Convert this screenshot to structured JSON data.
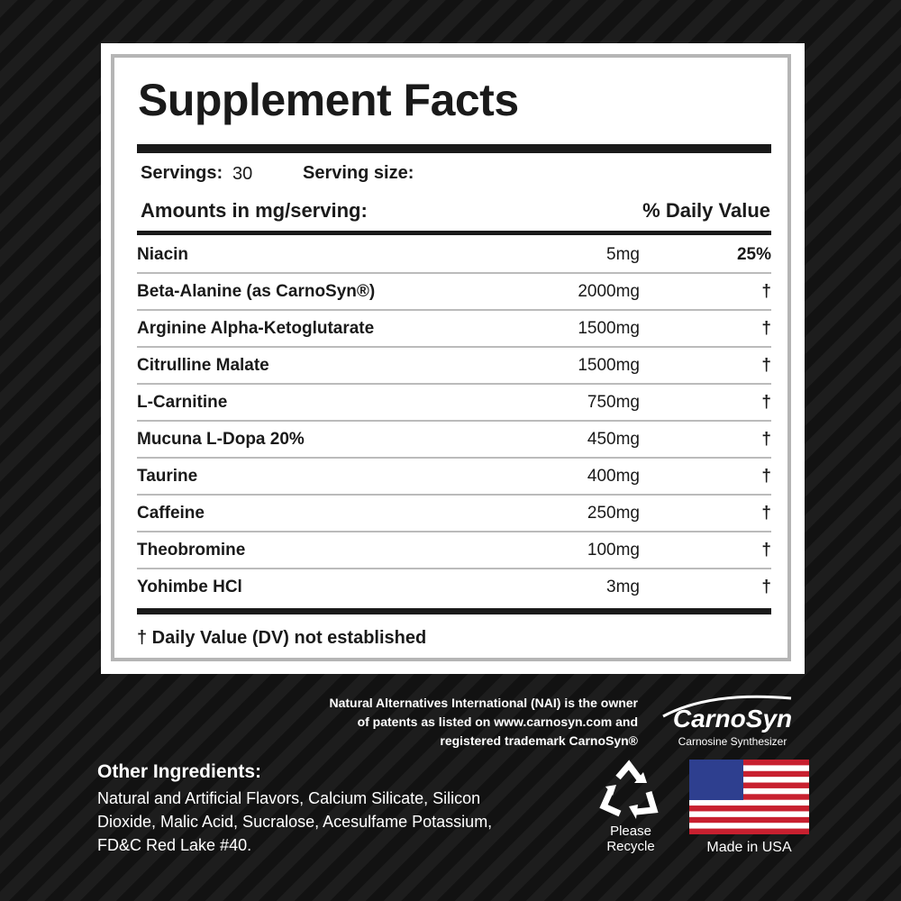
{
  "label": {
    "title": "Supplement Facts",
    "servings_label": "Servings:",
    "servings_value": "30",
    "serving_size_label": "Serving size:",
    "amounts_header": "Amounts in mg/serving:",
    "dv_header": "% Daily Value",
    "rows": [
      [
        "Niacin",
        "5mg",
        "25%"
      ],
      [
        "Beta-Alanine (as CarnoSyn®)",
        "2000mg",
        "†"
      ],
      [
        "Arginine Alpha-Ketoglutarate",
        "1500mg",
        "†"
      ],
      [
        "Citrulline Malate",
        "1500mg",
        "†"
      ],
      [
        "L-Carnitine",
        "750mg",
        "†"
      ],
      [
        "Mucuna L-Dopa 20%",
        "450mg",
        "†"
      ],
      [
        "Taurine",
        "400mg",
        "†"
      ],
      [
        "Caffeine",
        "250mg",
        "†"
      ],
      [
        "Theobromine",
        "100mg",
        "†"
      ],
      [
        "Yohimbe HCl",
        "3mg",
        "†"
      ]
    ],
    "footnote": "† Daily Value (DV) not established"
  },
  "trademark_note": [
    "Natural Alternatives International (NAI) is the owner",
    "of patents as listed on www.carnosyn.com and",
    "registered trademark CarnoSyn®"
  ],
  "logo": {
    "name": "CarnoSyn",
    "tagline": "Carnosine Synthesizer"
  },
  "other_ingredients": {
    "heading": "Other Ingredients:",
    "lines": [
      "Natural and Artificial Flavors, Calcium Silicate, Silicon",
      "Dioxide, Malic Acid, Sucralose, Acesulfame Potassium,",
      "FD&C Red Lake #40."
    ]
  },
  "recycle": [
    "Please",
    "Recycle"
  ],
  "origin": "Made in USA"
}
